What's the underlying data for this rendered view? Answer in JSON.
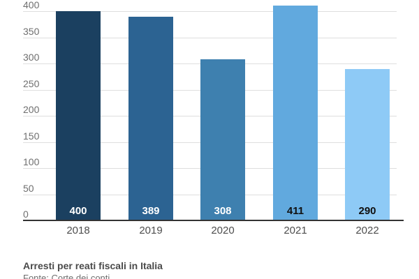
{
  "chart_data": {
    "type": "bar",
    "categories": [
      "2018",
      "2019",
      "2020",
      "2021",
      "2022"
    ],
    "values": [
      400,
      389,
      308,
      411,
      290
    ],
    "bar_colors": [
      "#1b4060",
      "#2c6392",
      "#3e80af",
      "#61a9de",
      "#8ecaf6"
    ],
    "value_label_colors": [
      "#ffffff",
      "#ffffff",
      "#ffffff",
      "#101010",
      "#101010"
    ],
    "yticks": [
      0,
      50,
      100,
      150,
      200,
      250,
      300,
      350,
      400
    ],
    "ylim": [
      0,
      400
    ],
    "grid": true,
    "legend_position": "none",
    "value_labels_inside_bars": true,
    "title": "Arresti per reati fiscali in Italia",
    "source": "Fonte: Corte dei conti",
    "xlabel": "",
    "ylabel": ""
  },
  "colors": {
    "background": "#ffffff",
    "gridline": "#dedede",
    "axis_line": "#333333",
    "ytick_label": "#6f6f6f",
    "xtick_label": "#4d4d4d",
    "caption_title": "#4a4a4a",
    "caption_source": "#6e6e6e"
  }
}
